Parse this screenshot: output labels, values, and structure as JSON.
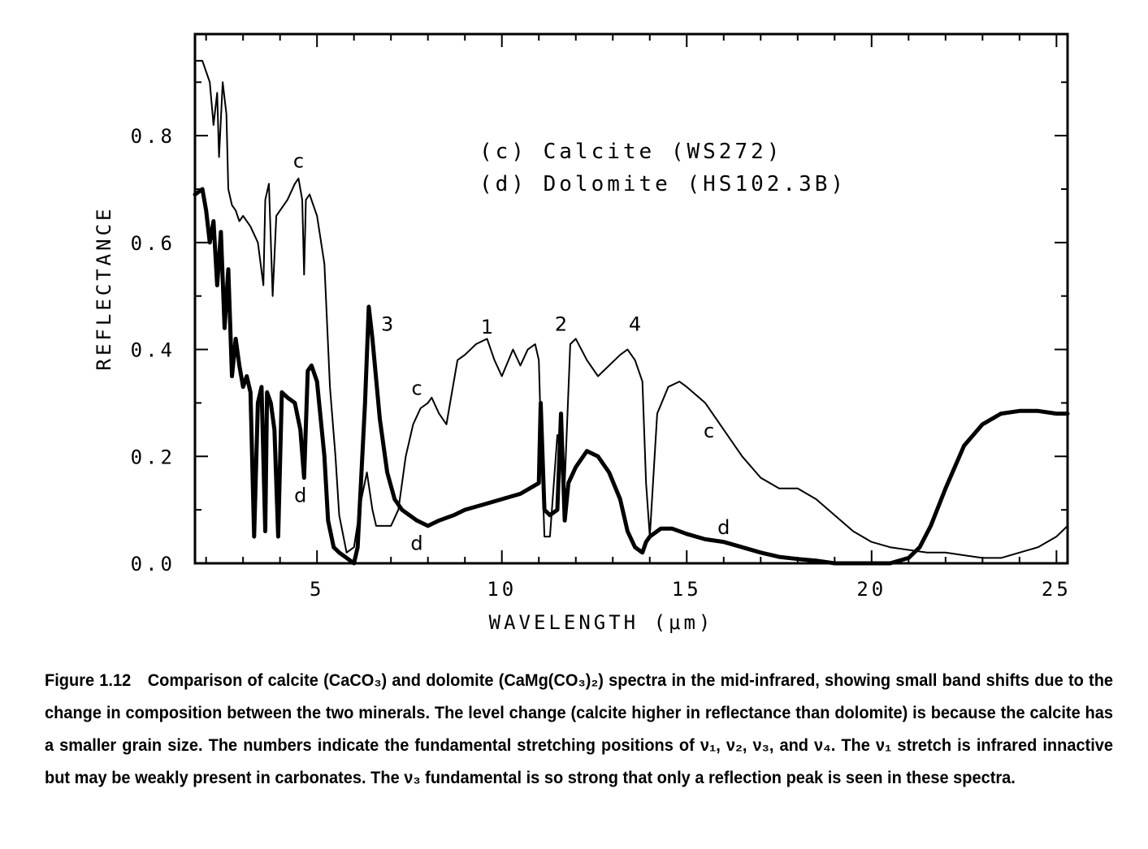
{
  "chart_data": {
    "type": "line",
    "title": "",
    "xlabel": "WAVELENGTH  (μm)",
    "ylabel": "REFLECTANCE",
    "xlim": [
      1.7,
      25.3
    ],
    "ylim": [
      0.0,
      0.99
    ],
    "x_ticks": [
      5,
      10,
      15,
      20,
      25
    ],
    "x_tick_labels": [
      "5",
      "10",
      "15",
      "20",
      "25"
    ],
    "y_ticks": [
      0.0,
      0.2,
      0.4,
      0.6,
      0.8
    ],
    "y_tick_labels": [
      "0.0",
      "0.2",
      "0.4",
      "0.6",
      "0.8"
    ],
    "grid": false,
    "legend_position": "top-center",
    "legend": [
      "(c)  Calcite  (WS272)",
      "(d)  Dolomite  (HS102.3B)"
    ],
    "series": [
      {
        "name": "(c)  Calcite  (WS272)",
        "line": "thin",
        "x": [
          1.7,
          1.9,
          2.1,
          2.2,
          2.3,
          2.35,
          2.45,
          2.55,
          2.6,
          2.7,
          2.8,
          2.9,
          3.0,
          3.2,
          3.4,
          3.55,
          3.6,
          3.7,
          3.8,
          3.9,
          4.0,
          4.2,
          4.4,
          4.5,
          4.6,
          4.65,
          4.7,
          4.8,
          4.9,
          5.0,
          5.2,
          5.35,
          5.5,
          5.6,
          5.8,
          6.0,
          6.2,
          6.35,
          6.5,
          6.6,
          6.8,
          7.0,
          7.2,
          7.4,
          7.6,
          7.8,
          8.0,
          8.1,
          8.3,
          8.5,
          8.6,
          8.8,
          9.0,
          9.3,
          9.6,
          9.8,
          10.0,
          10.3,
          10.5,
          10.7,
          10.9,
          11.0,
          11.05,
          11.15,
          11.3,
          11.5,
          11.7,
          11.85,
          12.0,
          12.3,
          12.6,
          12.9,
          13.2,
          13.4,
          13.6,
          13.8,
          13.9,
          14.0,
          14.2,
          14.5,
          14.8,
          15.0,
          15.5,
          16.0,
          16.5,
          17.0,
          17.5,
          18.0,
          18.5,
          19.0,
          19.5,
          20.0,
          20.5,
          21.0,
          21.5,
          22.0,
          22.5,
          23.0,
          23.5,
          24.0,
          24.5,
          25.0,
          25.3
        ],
        "y": [
          0.94,
          0.94,
          0.9,
          0.82,
          0.88,
          0.76,
          0.9,
          0.84,
          0.7,
          0.67,
          0.66,
          0.64,
          0.65,
          0.63,
          0.6,
          0.52,
          0.68,
          0.71,
          0.5,
          0.65,
          0.66,
          0.68,
          0.71,
          0.72,
          0.68,
          0.54,
          0.68,
          0.69,
          0.67,
          0.65,
          0.56,
          0.33,
          0.2,
          0.09,
          0.02,
          0.03,
          0.12,
          0.17,
          0.1,
          0.07,
          0.07,
          0.07,
          0.1,
          0.2,
          0.26,
          0.29,
          0.3,
          0.31,
          0.28,
          0.26,
          0.3,
          0.38,
          0.39,
          0.41,
          0.42,
          0.38,
          0.35,
          0.4,
          0.37,
          0.4,
          0.41,
          0.38,
          0.26,
          0.05,
          0.05,
          0.24,
          0.15,
          0.41,
          0.42,
          0.38,
          0.35,
          0.37,
          0.39,
          0.4,
          0.38,
          0.34,
          0.15,
          0.05,
          0.28,
          0.33,
          0.34,
          0.33,
          0.3,
          0.25,
          0.2,
          0.16,
          0.14,
          0.14,
          0.12,
          0.09,
          0.06,
          0.04,
          0.03,
          0.025,
          0.02,
          0.02,
          0.015,
          0.01,
          0.01,
          0.02,
          0.03,
          0.05,
          0.07
        ]
      },
      {
        "name": "(d)  Dolomite  (HS102.3B)",
        "line": "thick",
        "x": [
          1.7,
          1.9,
          2.0,
          2.1,
          2.2,
          2.3,
          2.4,
          2.5,
          2.6,
          2.7,
          2.8,
          2.9,
          3.0,
          3.1,
          3.2,
          3.3,
          3.4,
          3.5,
          3.6,
          3.65,
          3.75,
          3.85,
          3.95,
          4.05,
          4.2,
          4.4,
          4.55,
          4.65,
          4.75,
          4.85,
          5.0,
          5.2,
          5.3,
          5.45,
          5.6,
          5.8,
          6.0,
          6.1,
          6.3,
          6.4,
          6.5,
          6.7,
          6.9,
          7.1,
          7.3,
          7.5,
          7.7,
          8.0,
          8.3,
          8.7,
          9.0,
          9.5,
          10.0,
          10.5,
          11.0,
          11.05,
          11.15,
          11.3,
          11.5,
          11.6,
          11.7,
          11.8,
          12.0,
          12.3,
          12.6,
          12.9,
          13.2,
          13.4,
          13.6,
          13.8,
          13.9,
          14.0,
          14.3,
          14.6,
          15.0,
          15.5,
          16.0,
          16.5,
          17.0,
          17.5,
          18.0,
          18.5,
          19.0,
          19.5,
          20.0,
          20.5,
          21.0,
          21.3,
          21.6,
          22.0,
          22.5,
          23.0,
          23.5,
          24.0,
          24.5,
          25.0,
          25.3
        ],
        "y": [
          0.69,
          0.7,
          0.66,
          0.6,
          0.64,
          0.52,
          0.62,
          0.44,
          0.55,
          0.35,
          0.42,
          0.37,
          0.33,
          0.35,
          0.32,
          0.05,
          0.3,
          0.33,
          0.06,
          0.32,
          0.3,
          0.25,
          0.05,
          0.32,
          0.31,
          0.3,
          0.25,
          0.16,
          0.36,
          0.37,
          0.34,
          0.2,
          0.08,
          0.03,
          0.02,
          0.01,
          0.0,
          0.03,
          0.3,
          0.48,
          0.42,
          0.27,
          0.17,
          0.12,
          0.1,
          0.09,
          0.08,
          0.07,
          0.08,
          0.09,
          0.1,
          0.11,
          0.12,
          0.13,
          0.15,
          0.3,
          0.1,
          0.09,
          0.1,
          0.28,
          0.08,
          0.15,
          0.18,
          0.21,
          0.2,
          0.17,
          0.12,
          0.06,
          0.03,
          0.02,
          0.04,
          0.05,
          0.065,
          0.065,
          0.055,
          0.045,
          0.04,
          0.03,
          0.02,
          0.012,
          0.008,
          0.005,
          0.0,
          0.0,
          0.0,
          0.0,
          0.01,
          0.03,
          0.07,
          0.14,
          0.22,
          0.26,
          0.28,
          0.285,
          0.285,
          0.28,
          0.28
        ]
      }
    ],
    "annotations": [
      {
        "text": "c",
        "x": 4.5,
        "y": 0.74
      },
      {
        "text": "c",
        "x": 7.7,
        "y": 0.315
      },
      {
        "text": "c",
        "x": 15.6,
        "y": 0.235
      },
      {
        "text": "d",
        "x": 4.55,
        "y": 0.115
      },
      {
        "text": "d",
        "x": 7.7,
        "y": 0.025
      },
      {
        "text": "d",
        "x": 16.0,
        "y": 0.055
      },
      {
        "text": "3",
        "x": 6.9,
        "y": 0.435
      },
      {
        "text": "1",
        "x": 9.6,
        "y": 0.43
      },
      {
        "text": "2",
        "x": 11.6,
        "y": 0.435
      },
      {
        "text": "4",
        "x": 13.6,
        "y": 0.435
      }
    ]
  },
  "caption": {
    "label": "Figure 1.12",
    "text": "Comparison of calcite (CaCO₃) and dolomite (CaMg(CO₃)₂) spectra in the mid-infrared, showing small band shifts due to the change in composition between the two minerals. The level change (calcite higher in reflectance than dolomite) is because the calcite has a smaller grain size. The numbers indicate the fundamental stretching positions of ν₁, ν₂, ν₃, and ν₄. The ν₁ stretch is infrared innactive but may be weakly present in carbonates. The ν₃ fundamental is so strong that only a reflection peak is seen in these spectra."
  }
}
